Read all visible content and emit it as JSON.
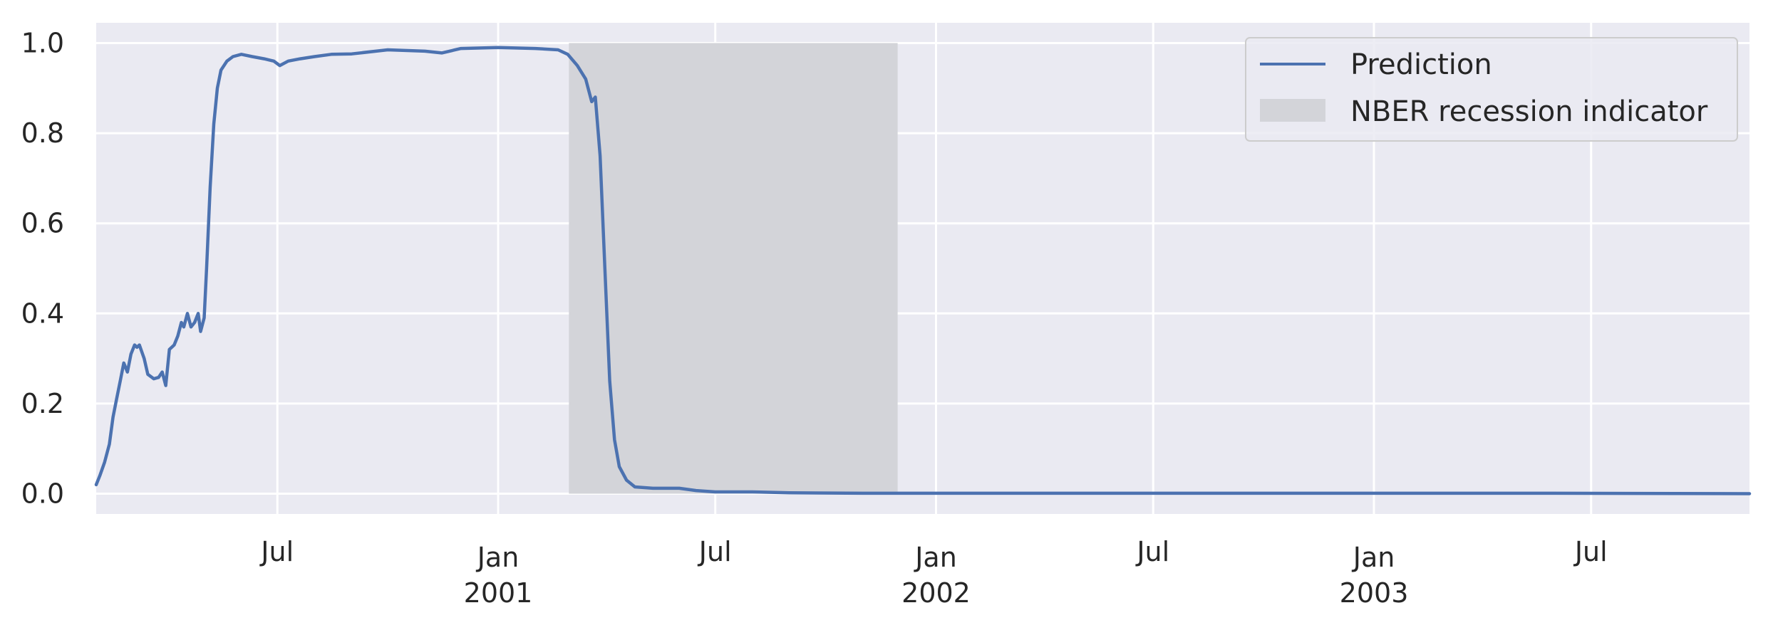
{
  "chart_data": {
    "type": "line",
    "x_range": [
      "2000-02-01",
      "2003-11-10"
    ],
    "ylim": [
      -0.045,
      1.045
    ],
    "grid": true,
    "legend_position": "top-right",
    "y_ticks": [
      {
        "value": 0.0,
        "label": "0.0"
      },
      {
        "value": 0.2,
        "label": "0.2"
      },
      {
        "value": 0.4,
        "label": "0.4"
      },
      {
        "value": 0.6,
        "label": "0.6"
      },
      {
        "value": 0.8,
        "label": "0.8"
      },
      {
        "value": 1.0,
        "label": "1.0"
      }
    ],
    "x_ticks": [
      {
        "date": "2000-07-01",
        "label": "Jul",
        "sublabel": ""
      },
      {
        "date": "2001-01-01",
        "label": "Jan",
        "sublabel": "2001"
      },
      {
        "date": "2001-07-01",
        "label": "Jul",
        "sublabel": ""
      },
      {
        "date": "2002-01-01",
        "label": "Jan",
        "sublabel": "2002"
      },
      {
        "date": "2002-07-01",
        "label": "Jul",
        "sublabel": ""
      },
      {
        "date": "2003-01-01",
        "label": "Jan",
        "sublabel": "2003"
      },
      {
        "date": "2003-07-01",
        "label": "Jul",
        "sublabel": ""
      }
    ],
    "recession": {
      "name": "NBER recession indicator",
      "start": "2001-03-01",
      "end": "2001-11-30",
      "y_top": 1.0,
      "color": "#d3d4d9"
    },
    "series": [
      {
        "name": "Prediction",
        "color": "#4c72b0",
        "points": [
          [
            "2000-02-01",
            0.02
          ],
          [
            "2000-02-04",
            0.04
          ],
          [
            "2000-02-08",
            0.07
          ],
          [
            "2000-02-12",
            0.11
          ],
          [
            "2000-02-15",
            0.17
          ],
          [
            "2000-02-18",
            0.21
          ],
          [
            "2000-02-21",
            0.25
          ],
          [
            "2000-02-24",
            0.29
          ],
          [
            "2000-02-27",
            0.27
          ],
          [
            "2000-03-01",
            0.31
          ],
          [
            "2000-03-04",
            0.33
          ],
          [
            "2000-03-06",
            0.325
          ],
          [
            "2000-03-08",
            0.33
          ],
          [
            "2000-03-12",
            0.3
          ],
          [
            "2000-03-15",
            0.265
          ],
          [
            "2000-03-20",
            0.255
          ],
          [
            "2000-03-24",
            0.258
          ],
          [
            "2000-03-27",
            0.27
          ],
          [
            "2000-03-30",
            0.24
          ],
          [
            "2000-04-02",
            0.32
          ],
          [
            "2000-04-06",
            0.33
          ],
          [
            "2000-04-09",
            0.35
          ],
          [
            "2000-04-12",
            0.38
          ],
          [
            "2000-04-14",
            0.37
          ],
          [
            "2000-04-17",
            0.4
          ],
          [
            "2000-04-20",
            0.37
          ],
          [
            "2000-04-23",
            0.38
          ],
          [
            "2000-04-26",
            0.4
          ],
          [
            "2000-04-28",
            0.36
          ],
          [
            "2000-05-01",
            0.39
          ],
          [
            "2000-05-03",
            0.5
          ],
          [
            "2000-05-06",
            0.68
          ],
          [
            "2000-05-09",
            0.82
          ],
          [
            "2000-05-12",
            0.9
          ],
          [
            "2000-05-15",
            0.94
          ],
          [
            "2000-05-20",
            0.96
          ],
          [
            "2000-05-25",
            0.97
          ],
          [
            "2000-06-01",
            0.975
          ],
          [
            "2000-06-10",
            0.97
          ],
          [
            "2000-06-20",
            0.965
          ],
          [
            "2000-06-28",
            0.96
          ],
          [
            "2000-07-03",
            0.95
          ],
          [
            "2000-07-10",
            0.96
          ],
          [
            "2000-07-20",
            0.965
          ],
          [
            "2000-08-01",
            0.97
          ],
          [
            "2000-08-15",
            0.975
          ],
          [
            "2000-09-01",
            0.976
          ],
          [
            "2000-10-01",
            0.985
          ],
          [
            "2000-11-01",
            0.982
          ],
          [
            "2000-11-15",
            0.978
          ],
          [
            "2000-12-01",
            0.988
          ],
          [
            "2001-01-01",
            0.99
          ],
          [
            "2001-02-01",
            0.988
          ],
          [
            "2001-02-20",
            0.985
          ],
          [
            "2001-02-28",
            0.975
          ],
          [
            "2001-03-08",
            0.95
          ],
          [
            "2001-03-15",
            0.92
          ],
          [
            "2001-03-20",
            0.87
          ],
          [
            "2001-03-23",
            0.88
          ],
          [
            "2001-03-27",
            0.75
          ],
          [
            "2001-03-31",
            0.5
          ],
          [
            "2001-04-04",
            0.25
          ],
          [
            "2001-04-08",
            0.12
          ],
          [
            "2001-04-12",
            0.06
          ],
          [
            "2001-04-18",
            0.03
          ],
          [
            "2001-04-25",
            0.015
          ],
          [
            "2001-05-10",
            0.012
          ],
          [
            "2001-06-01",
            0.012
          ],
          [
            "2001-06-15",
            0.007
          ],
          [
            "2001-07-01",
            0.004
          ],
          [
            "2001-08-01",
            0.004
          ],
          [
            "2001-09-01",
            0.002
          ],
          [
            "2001-11-01",
            0.001
          ],
          [
            "2002-06-01",
            0.001
          ],
          [
            "2003-06-01",
            0.001
          ],
          [
            "2003-11-10",
            0.0
          ]
        ]
      }
    ]
  }
}
